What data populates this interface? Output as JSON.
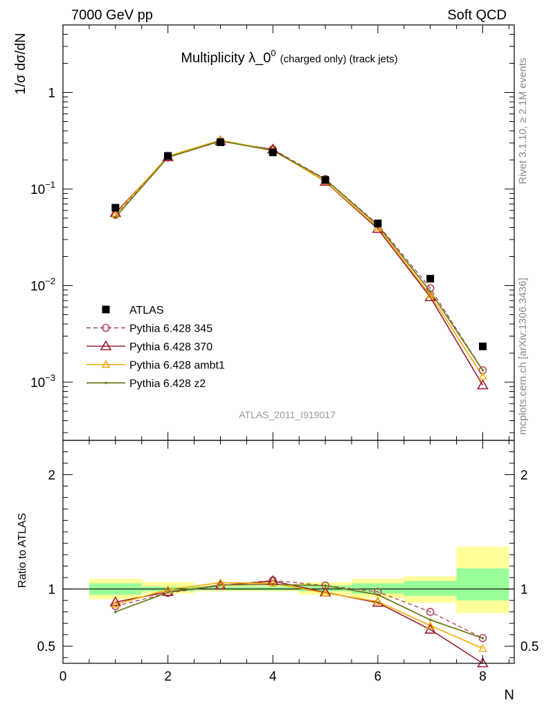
{
  "header": {
    "left": "7000 GeV pp",
    "right": "Soft QCD",
    "title_main": "Multiplicity λ_0",
    "title_sup": "0",
    "title_small": "(charged only) (track jets)",
    "side_top": "Rivet 3.1.10, ≥ 2.1M events",
    "side_bottom": "mcplots.cern.ch [arXiv:1306.3436]",
    "watermark": "ATLAS_2011_I919017"
  },
  "colors": {
    "atlas": "#000000",
    "p345": "#b2475d",
    "p370": "#9b1b30",
    "ambt1": "#f5a800",
    "z2": "#6e7d1e",
    "band_inner": "#99ff99",
    "band_outer": "#ffff99"
  },
  "chart_data": [
    {
      "type": "scatter",
      "panel": "main",
      "ylabel": "1/σ dσ/dN",
      "yscale": "log",
      "ylim": [
        0.00025,
        5
      ],
      "xlim": [
        0,
        8.6
      ],
      "x_ticks": [
        0,
        2,
        4,
        6,
        8
      ],
      "y_ticks": [
        {
          "value": 1,
          "mant": "1",
          "exp": ""
        },
        {
          "value": 0.1,
          "mant": "10",
          "exp": "−1"
        },
        {
          "value": 0.01,
          "mant": "10",
          "exp": "−2"
        },
        {
          "value": 0.001,
          "mant": "10",
          "exp": "−3"
        }
      ],
      "legend_position": "lower-left",
      "series": [
        {
          "name": "ATLAS",
          "style": "data",
          "x": [
            1,
            2,
            3,
            4,
            5,
            6,
            7,
            8
          ],
          "y": [
            0.064,
            0.22,
            0.305,
            0.24,
            0.124,
            0.044,
            0.0118,
            0.00235
          ]
        },
        {
          "name": "Pythia 6.428 345",
          "style": "p345",
          "x": [
            1,
            2,
            3,
            4,
            5,
            6,
            7,
            8
          ],
          "y": [
            0.054,
            0.212,
            0.312,
            0.258,
            0.127,
            0.043,
            0.0094,
            0.00133
          ]
        },
        {
          "name": "Pythia 6.428 370",
          "style": "p370",
          "x": [
            1,
            2,
            3,
            4,
            5,
            6,
            7,
            8
          ],
          "y": [
            0.0565,
            0.214,
            0.313,
            0.257,
            0.119,
            0.0387,
            0.0076,
            0.00093
          ]
        },
        {
          "name": "Pythia 6.428 ambt1",
          "style": "ambt1",
          "x": [
            1,
            2,
            3,
            4,
            5,
            6,
            7,
            8
          ],
          "y": [
            0.055,
            0.219,
            0.321,
            0.252,
            0.12,
            0.04,
            0.008,
            0.00115
          ]
        },
        {
          "name": "Pythia 6.428 z2",
          "style": "z2",
          "x": [
            1,
            2,
            3,
            4,
            5,
            6,
            7,
            8
          ],
          "y": [
            0.051,
            0.213,
            0.315,
            0.25,
            0.126,
            0.042,
            0.0087,
            0.00133
          ]
        }
      ]
    },
    {
      "type": "line",
      "panel": "ratio",
      "ylabel": "Ratio to ATLAS",
      "xlabel": "N",
      "ylim": [
        0.35,
        2.3
      ],
      "xlim": [
        0,
        8.6
      ],
      "x_ticks": [
        0,
        2,
        4,
        6,
        8
      ],
      "y_ticks": [
        0.5,
        1,
        2
      ],
      "bands": [
        {
          "x0": 0.5,
          "x1": 1.5,
          "inner": [
            0.95,
            1.05
          ],
          "outer": [
            0.91,
            1.09
          ]
        },
        {
          "x0": 1.5,
          "x1": 2.5,
          "inner": [
            0.98,
            1.02
          ],
          "outer": [
            0.96,
            1.06
          ]
        },
        {
          "x0": 2.5,
          "x1": 3.5,
          "inner": [
            0.99,
            1.02
          ],
          "outer": [
            0.98,
            1.03
          ]
        },
        {
          "x0": 3.5,
          "x1": 4.5,
          "inner": [
            0.99,
            1.02
          ],
          "outer": [
            0.98,
            1.03
          ]
        },
        {
          "x0": 4.5,
          "x1": 5.5,
          "inner": [
            0.98,
            1.03
          ],
          "outer": [
            0.95,
            1.06
          ]
        },
        {
          "x0": 5.5,
          "x1": 6.5,
          "inner": [
            0.96,
            1.05
          ],
          "outer": [
            0.92,
            1.09
          ]
        },
        {
          "x0": 6.5,
          "x1": 7.5,
          "inner": [
            0.94,
            1.07
          ],
          "outer": [
            0.88,
            1.11
          ]
        },
        {
          "x0": 7.5,
          "x1": 8.5,
          "inner": [
            0.9,
            1.18
          ],
          "outer": [
            0.79,
            1.37
          ]
        }
      ],
      "series": [
        {
          "name": "Pythia 6.428 345",
          "style": "p345",
          "x": [
            1,
            2,
            3,
            4,
            5,
            6,
            7,
            8
          ],
          "y": [
            0.85,
            0.965,
            1.03,
            1.075,
            1.03,
            0.975,
            0.8,
            0.57
          ]
        },
        {
          "name": "Pythia 6.428 370",
          "style": "p370",
          "x": [
            1,
            2,
            3,
            4,
            5,
            6,
            7,
            8
          ],
          "y": [
            0.885,
            0.975,
            1.03,
            1.07,
            0.97,
            0.88,
            0.645,
            0.35
          ]
        },
        {
          "name": "Pythia 6.428 ambt1",
          "style": "ambt1",
          "x": [
            1,
            2,
            3,
            4,
            5,
            6,
            7,
            8
          ],
          "y": [
            0.865,
            0.995,
            1.055,
            1.05,
            0.965,
            0.89,
            0.68,
            0.48
          ]
        },
        {
          "name": "Pythia 6.428 z2",
          "style": "z2",
          "x": [
            1,
            2,
            3,
            4,
            5,
            6,
            7,
            8
          ],
          "y": [
            0.8,
            0.97,
            1.035,
            1.04,
            1.03,
            0.95,
            0.73,
            0.57
          ]
        }
      ]
    }
  ]
}
